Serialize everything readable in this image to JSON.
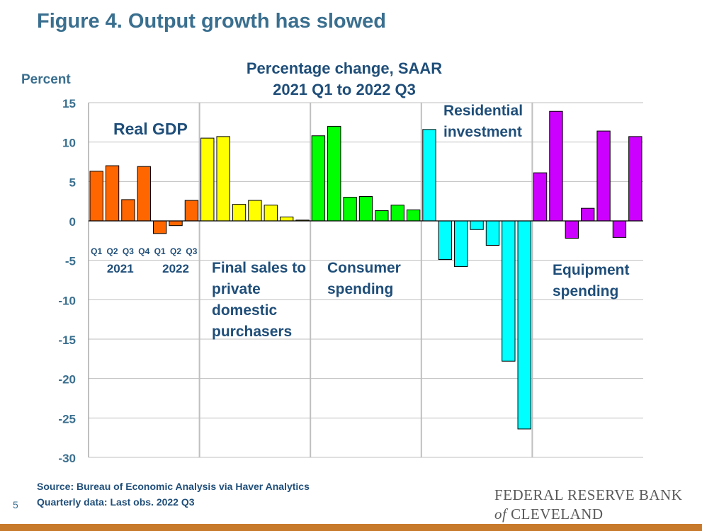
{
  "slide": {
    "title": "Figure 4. Output growth has slowed",
    "page_number": "5",
    "source_line1": "Source: Bureau of Economic Analysis via Haver Analytics",
    "source_line2": "Quarterly data: Last obs. 2022 Q3",
    "logo_line1": "FEDERAL RESERVE BANK",
    "logo_of": "of",
    "logo_line2": "CLEVELAND"
  },
  "colors": {
    "title": "#3a6f8f",
    "chart_text": "#1f4e79",
    "grid": "#bfbfbf",
    "divider": "#bfbfbf",
    "footer_bar": "#c87a2c"
  },
  "chart_data": {
    "type": "bar",
    "title": "Percentage change, SAAR",
    "subtitle": "2021 Q1 to 2022 Q3",
    "ylabel": "Percent",
    "ylim": [
      -30,
      15
    ],
    "yticks": [
      15,
      10,
      5,
      0,
      -5,
      -10,
      -15,
      -20,
      -25,
      -30
    ],
    "grid": true,
    "quarter_labels": [
      "Q1",
      "Q2",
      "Q3",
      "Q4",
      "Q1",
      "Q2",
      "Q3"
    ],
    "year_labels": [
      "2021",
      "2022"
    ],
    "categories": [
      "2021 Q1",
      "2021 Q2",
      "2021 Q3",
      "2021 Q4",
      "2022 Q1",
      "2022 Q2",
      "2022 Q3"
    ],
    "groups": [
      {
        "label_lines": [
          "Real GDP"
        ],
        "color": "#ff6600",
        "values": [
          6.3,
          7.0,
          2.7,
          6.9,
          -1.6,
          -0.6,
          2.6
        ]
      },
      {
        "label_lines": [
          "Final sales to",
          "private",
          "domestic",
          "purchasers"
        ],
        "color": "#ffff00",
        "values": [
          10.5,
          10.7,
          2.1,
          2.6,
          2.0,
          0.5,
          0.1
        ]
      },
      {
        "label_lines": [
          "Consumer",
          "spending"
        ],
        "color": "#00ff00",
        "values": [
          10.8,
          12.0,
          3.0,
          3.1,
          1.3,
          2.0,
          1.4
        ]
      },
      {
        "label_lines": [
          "Residential",
          "investment"
        ],
        "color": "#00ffff",
        "values": [
          11.6,
          -4.9,
          -5.8,
          -1.1,
          -3.1,
          -17.8,
          -26.4
        ]
      },
      {
        "label_lines": [
          "Equipment",
          "spending"
        ],
        "color": "#cc00ff",
        "values": [
          6.1,
          13.9,
          -2.2,
          1.6,
          11.4,
          -2.1,
          10.7
        ]
      }
    ]
  }
}
